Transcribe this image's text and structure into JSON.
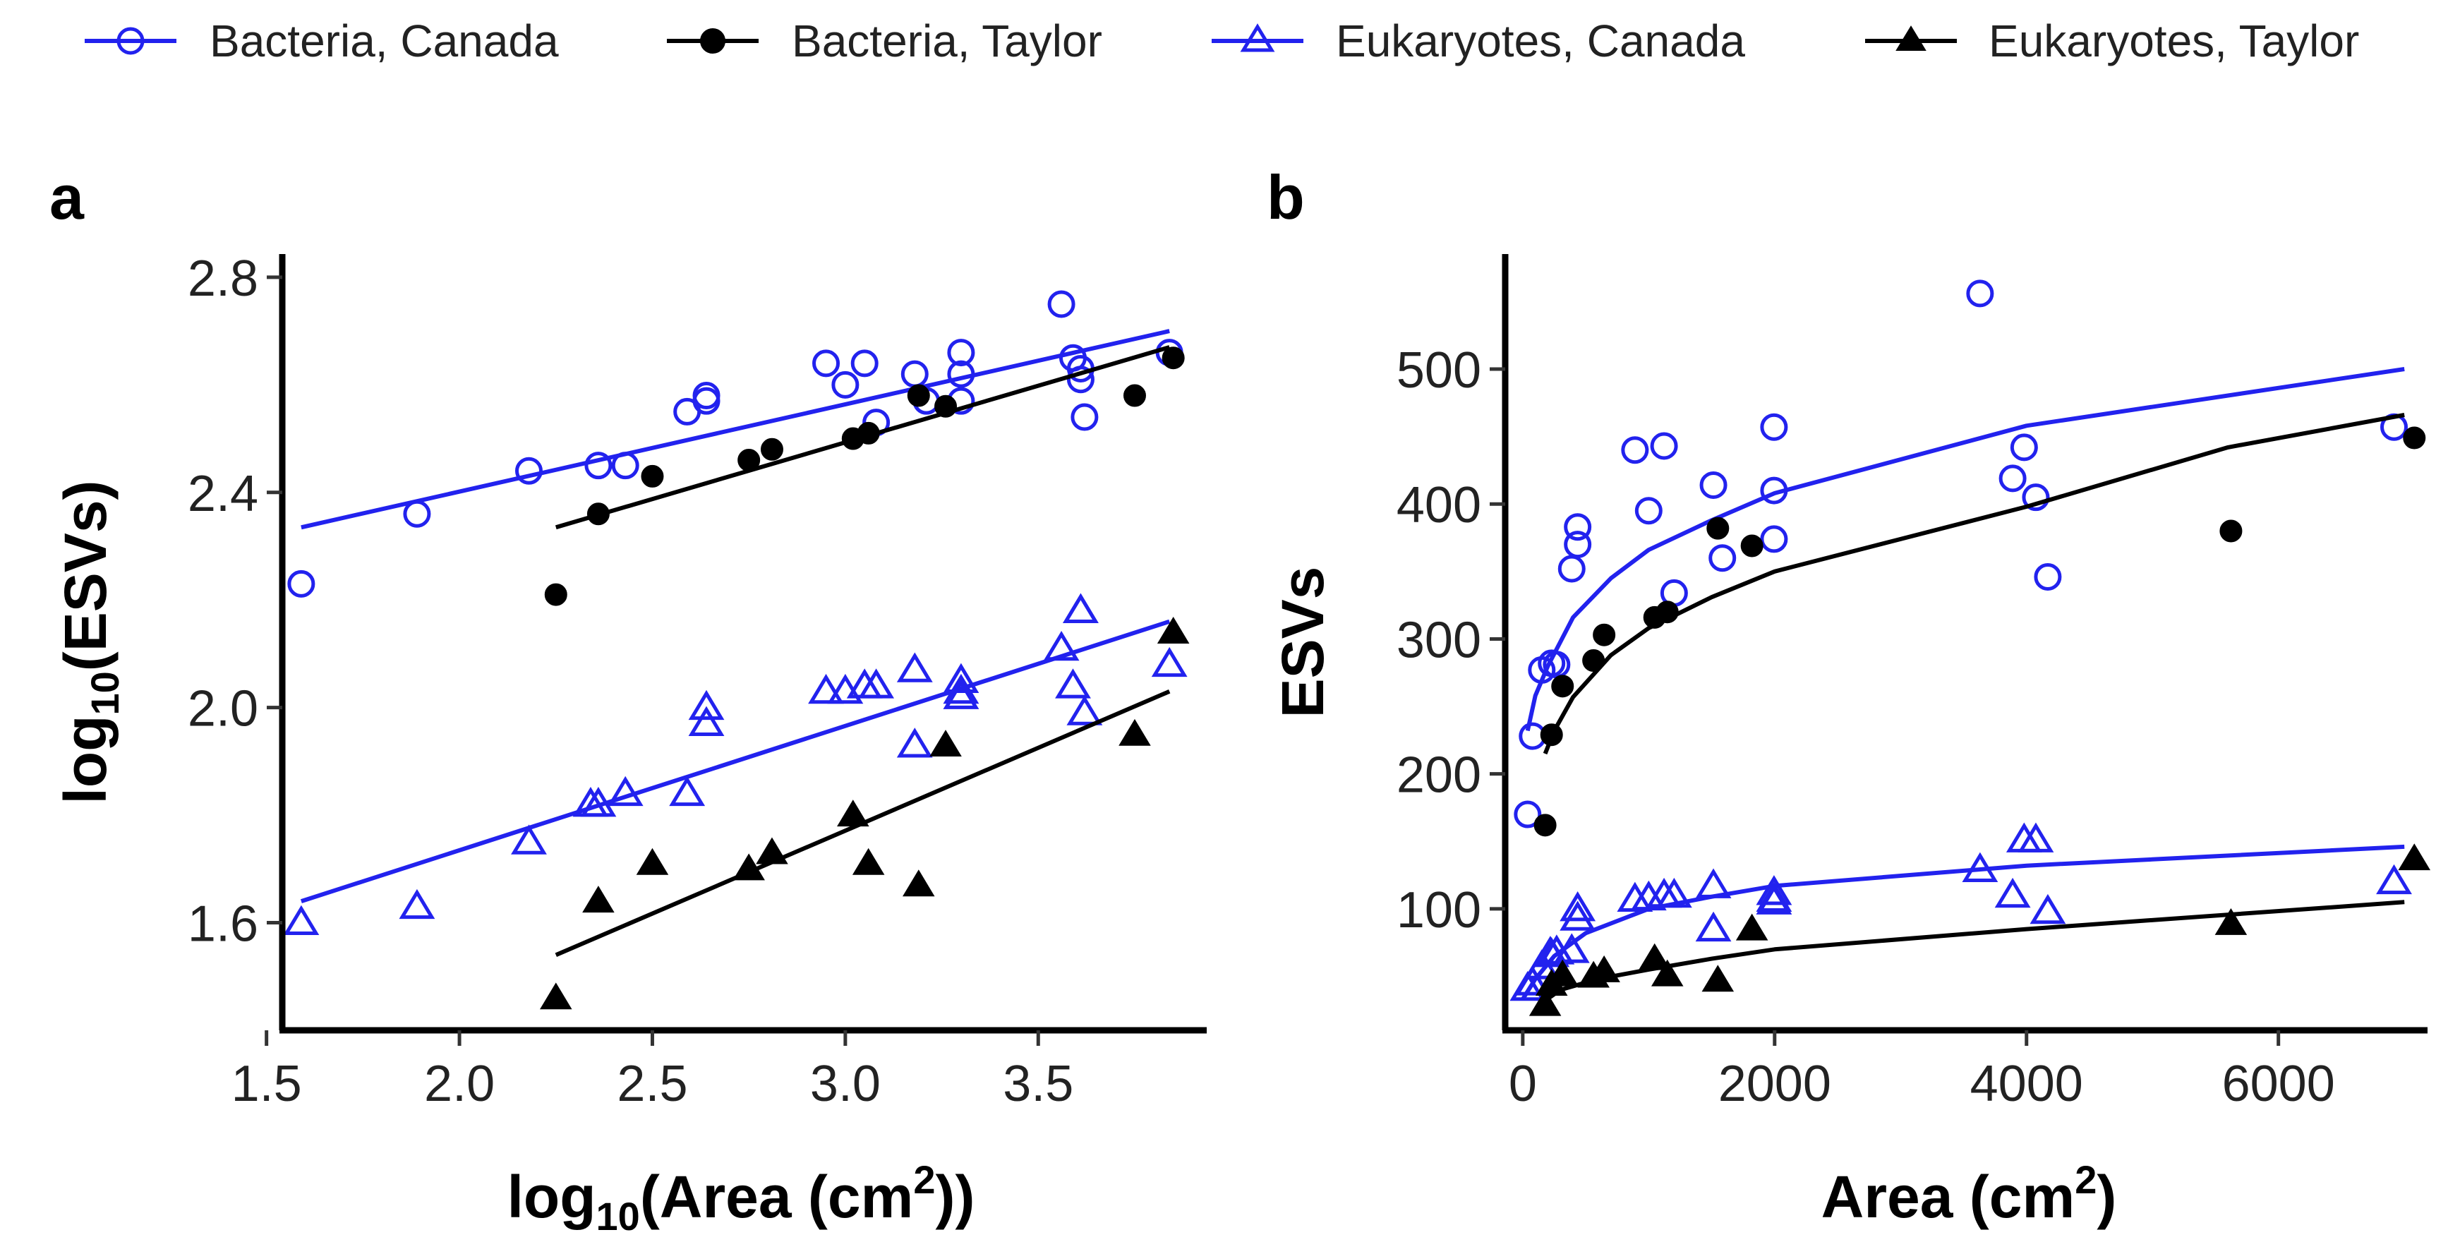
{
  "legend": {
    "items": [
      {
        "label": "Bacteria, Canada",
        "color": "#2222ee",
        "shape": "circle-open"
      },
      {
        "label": "Bacteria, Taylor",
        "color": "#000000",
        "shape": "circle-filled"
      },
      {
        "label": "Eukaryotes, Canada",
        "color": "#2222ee",
        "shape": "triangle-open"
      },
      {
        "label": "Eukaryotes, Taylor",
        "color": "#000000",
        "shape": "triangle-filled"
      }
    ]
  },
  "chart_data": [
    {
      "panel_label": "a",
      "type": "scatter",
      "xlabel": {
        "pre": "log",
        "sub": "10",
        "mid": "(Area (cm",
        "sup": "2",
        "post": "))"
      },
      "ylabel": {
        "pre": "log",
        "sub": "10",
        "post": "(ESVs)"
      },
      "xlim": [
        1.55,
        3.9
      ],
      "ylim": [
        1.4,
        2.83
      ],
      "xticks": [
        1.5,
        2.0,
        2.5,
        3.0,
        3.5
      ],
      "xtick_labels": [
        "1.5",
        "2.0",
        "2.5",
        "3.0",
        "3.5"
      ],
      "yticks": [
        1.6,
        2.0,
        2.4,
        2.8
      ],
      "ytick_labels": [
        "1.6",
        "2.0",
        "2.4",
        "2.8"
      ],
      "series": [
        {
          "name": "Bacteria, Canada",
          "color": "#2222ee",
          "shape": "circle-open",
          "points": [
            [
              1.59,
              2.23
            ],
            [
              1.89,
              2.36
            ],
            [
              2.18,
              2.44
            ],
            [
              2.36,
              2.45
            ],
            [
              2.43,
              2.45
            ],
            [
              2.59,
              2.55
            ],
            [
              2.64,
              2.58
            ],
            [
              2.64,
              2.57
            ],
            [
              2.95,
              2.64
            ],
            [
              3.0,
              2.6
            ],
            [
              3.05,
              2.64
            ],
            [
              3.08,
              2.53
            ],
            [
              3.18,
              2.62
            ],
            [
              3.21,
              2.57
            ],
            [
              3.3,
              2.66
            ],
            [
              3.3,
              2.62
            ],
            [
              3.3,
              2.57
            ],
            [
              3.56,
              2.75
            ],
            [
              3.59,
              2.65
            ],
            [
              3.61,
              2.63
            ],
            [
              3.61,
              2.61
            ],
            [
              3.62,
              2.54
            ],
            [
              3.84,
              2.66
            ]
          ],
          "fit": [
            [
              1.59,
              2.335
            ],
            [
              3.84,
              2.7
            ]
          ]
        },
        {
          "name": "Bacteria, Taylor",
          "color": "#000000",
          "shape": "circle-filled",
          "points": [
            [
              2.25,
              2.21
            ],
            [
              2.36,
              2.36
            ],
            [
              2.5,
              2.43
            ],
            [
              2.75,
              2.46
            ],
            [
              2.81,
              2.48
            ],
            [
              3.02,
              2.5
            ],
            [
              3.06,
              2.51
            ],
            [
              3.19,
              2.58
            ],
            [
              3.26,
              2.56
            ],
            [
              3.75,
              2.58
            ],
            [
              3.85,
              2.65
            ]
          ],
          "fit": [
            [
              2.25,
              2.335
            ],
            [
              3.84,
              2.67
            ]
          ]
        },
        {
          "name": "Eukaryotes, Canada",
          "color": "#2222ee",
          "shape": "triangle-open",
          "points": [
            [
              1.59,
              1.6
            ],
            [
              1.89,
              1.63
            ],
            [
              2.18,
              1.75
            ],
            [
              2.34,
              1.82
            ],
            [
              2.36,
              1.82
            ],
            [
              2.43,
              1.84
            ],
            [
              2.59,
              1.84
            ],
            [
              2.64,
              2.0
            ],
            [
              2.64,
              1.97
            ],
            [
              2.95,
              2.03
            ],
            [
              3.0,
              2.03
            ],
            [
              3.05,
              2.04
            ],
            [
              3.08,
              2.04
            ],
            [
              3.18,
              2.07
            ],
            [
              3.18,
              1.93
            ],
            [
              3.3,
              2.05
            ],
            [
              3.3,
              2.03
            ],
            [
              3.3,
              2.02
            ],
            [
              3.56,
              2.11
            ],
            [
              3.59,
              2.04
            ],
            [
              3.61,
              2.18
            ],
            [
              3.61,
              2.18
            ],
            [
              3.62,
              1.99
            ],
            [
              3.84,
              2.08
            ]
          ],
          "fit": [
            [
              1.59,
              1.64
            ],
            [
              3.84,
              2.16
            ]
          ]
        },
        {
          "name": "Eukaryotes, Taylor",
          "color": "#000000",
          "shape": "triangle-filled",
          "points": [
            [
              2.25,
              1.46
            ],
            [
              2.36,
              1.64
            ],
            [
              2.5,
              1.71
            ],
            [
              2.75,
              1.7
            ],
            [
              2.81,
              1.73
            ],
            [
              3.02,
              1.8
            ],
            [
              3.06,
              1.71
            ],
            [
              3.19,
              1.67
            ],
            [
              3.26,
              1.93
            ],
            [
              3.75,
              1.95
            ],
            [
              3.85,
              2.14
            ]
          ],
          "fit": [
            [
              2.25,
              1.54
            ],
            [
              3.84,
              2.03
            ]
          ]
        }
      ]
    },
    {
      "panel_label": "b",
      "type": "scatter",
      "xlabel": {
        "pre": "Area (cm",
        "sup": "2",
        "post": ")"
      },
      "ylabel": {
        "pre": "ESVs"
      },
      "xlim": [
        -100,
        7100
      ],
      "ylim": [
        10,
        580
      ],
      "xticks": [
        0,
        2000,
        4000,
        6000
      ],
      "xtick_labels": [
        "0",
        "2000",
        "4000",
        "6000"
      ],
      "yticks": [
        100,
        200,
        300,
        400,
        500
      ],
      "ytick_labels": [
        "100",
        "200",
        "300",
        "400",
        "500"
      ],
      "series": [
        {
          "name": "Bacteria, Canada",
          "color": "#2222ee",
          "shape": "circle-open",
          "points": [
            [
              39,
              170
            ],
            [
              78,
              228
            ],
            [
              151,
              277
            ],
            [
              229,
              282
            ],
            [
              269,
              281
            ],
            [
              389,
              352
            ],
            [
              436,
              370
            ],
            [
              436,
              383
            ],
            [
              891,
              440
            ],
            [
              1000,
              395
            ],
            [
              1122,
              443
            ],
            [
              1202,
              334
            ],
            [
              1514,
              414
            ],
            [
              1585,
              360
            ],
            [
              1995,
              457
            ],
            [
              1995,
              410
            ],
            [
              1995,
              374
            ],
            [
              3631,
              556
            ],
            [
              3890,
              419
            ],
            [
              3981,
              442
            ],
            [
              4074,
              405
            ],
            [
              4169,
              346
            ],
            [
              6918,
              457
            ]
          ],
          "fit": [
            [
              39,
              232
            ],
            [
              100,
              258
            ],
            [
              200,
              280
            ],
            [
              400,
              316
            ],
            [
              700,
              345
            ],
            [
              1000,
              366
            ],
            [
              1500,
              388
            ],
            [
              2000,
              408
            ],
            [
              4000,
              458
            ],
            [
              7000,
              500
            ]
          ]
        },
        {
          "name": "Bacteria, Taylor",
          "color": "#000000",
          "shape": "circle-filled",
          "points": [
            [
              178,
              162
            ],
            [
              229,
              229
            ],
            [
              316,
              265
            ],
            [
              562,
              284
            ],
            [
              646,
              303
            ],
            [
              1047,
              316
            ],
            [
              1148,
              320
            ],
            [
              1549,
              382
            ],
            [
              1820,
              369
            ],
            [
              5623,
              380
            ],
            [
              7079,
              449
            ]
          ],
          "fit": [
            [
              178,
              215
            ],
            [
              250,
              232
            ],
            [
              400,
              257
            ],
            [
              700,
              288
            ],
            [
              1000,
              308
            ],
            [
              1500,
              331
            ],
            [
              2000,
              350
            ],
            [
              4000,
              398
            ],
            [
              5600,
              442
            ],
            [
              7000,
              466
            ]
          ]
        },
        {
          "name": "Eukaryotes, Canada",
          "color": "#2222ee",
          "shape": "triangle-open",
          "points": [
            [
              39,
              41
            ],
            [
              78,
              45
            ],
            [
              151,
              57
            ],
            [
              219,
              67
            ],
            [
              229,
              66
            ],
            [
              269,
              68
            ],
            [
              389,
              69
            ],
            [
              436,
              100
            ],
            [
              436,
              93
            ],
            [
              891,
              107
            ],
            [
              1000,
              108
            ],
            [
              1122,
              110
            ],
            [
              1202,
              110
            ],
            [
              1514,
              117
            ],
            [
              1514,
              85
            ],
            [
              1995,
              112
            ],
            [
              1995,
              107
            ],
            [
              1995,
              105
            ],
            [
              3631,
              129
            ],
            [
              3890,
              110
            ],
            [
              3981,
              151
            ],
            [
              4074,
              151
            ],
            [
              4169,
              98
            ],
            [
              6918,
              120
            ]
          ],
          "fit": [
            [
              0,
              33
            ],
            [
              100,
              48
            ],
            [
              250,
              65
            ],
            [
              500,
              82
            ],
            [
              1000,
              100
            ],
            [
              1500,
              109
            ],
            [
              2000,
              117
            ],
            [
              4000,
              132
            ],
            [
              7000,
              146
            ]
          ]
        },
        {
          "name": "Eukaryotes, Taylor",
          "color": "#000000",
          "shape": "triangle-filled",
          "points": [
            [
              178,
              29
            ],
            [
              229,
              44
            ],
            [
              316,
              51
            ],
            [
              562,
              50
            ],
            [
              646,
              54
            ],
            [
              1047,
              63
            ],
            [
              1148,
              51
            ],
            [
              1549,
              47
            ],
            [
              1820,
              85
            ],
            [
              5623,
              89
            ],
            [
              7079,
              137
            ]
          ],
          "fit": [
            [
              178,
              32
            ],
            [
              300,
              40
            ],
            [
              600,
              48
            ],
            [
              1000,
              55
            ],
            [
              1500,
              63
            ],
            [
              2000,
              70
            ],
            [
              4000,
              85
            ],
            [
              7000,
              105
            ]
          ]
        }
      ]
    }
  ]
}
